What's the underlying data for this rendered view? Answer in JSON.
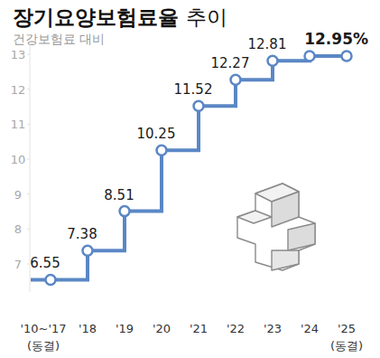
{
  "chart_data": {
    "type": "line",
    "title": "장기요양보험료율 추이",
    "subtitle": "건강보험료 대비",
    "categories": [
      "'10~'17",
      "'18",
      "'19",
      "'20",
      "'21",
      "'22",
      "'23",
      "'24",
      "'25"
    ],
    "category_notes": [
      "(동결)",
      null,
      null,
      null,
      null,
      null,
      null,
      null,
      "(동결)"
    ],
    "values": [
      6.55,
      7.38,
      8.51,
      10.25,
      11.52,
      12.27,
      12.81,
      12.95,
      12.95
    ],
    "value_labels": [
      "6.55",
      "7.38",
      "8.51",
      "10.25",
      "11.52",
      "12.27",
      "12.81",
      null,
      "12.95%"
    ],
    "color": "#5b87c5",
    "ylim": [
      6.2,
      13.3
    ],
    "yticks": [
      7,
      8,
      9,
      10,
      11,
      12,
      13
    ],
    "grid": false,
    "data_labels": true,
    "marker": "circle",
    "line_style": "step"
  }
}
